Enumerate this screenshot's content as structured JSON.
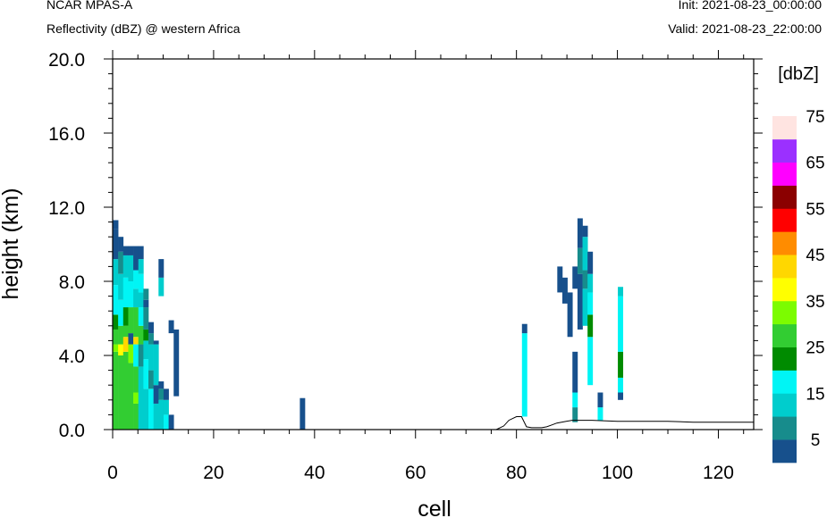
{
  "header": {
    "model": "NCAR MPAS-A",
    "field": "Reflectivity (dBZ) @ western Africa",
    "init": "Init: 2021-08-23_00:00:00",
    "valid": "Valid: 2021-08-23_22:00:00"
  },
  "chart_data": {
    "type": "heatmap",
    "xlabel": "cell",
    "ylabel": "height (km)",
    "xlim": [
      0,
      127
    ],
    "ylim": [
      0,
      20
    ],
    "x_ticks": [
      0,
      20,
      40,
      60,
      80,
      100,
      120
    ],
    "y_ticks": [
      "0.0",
      "4.0",
      "8.0",
      "12.0",
      "16.0",
      "20.0"
    ],
    "colorbar": {
      "label": "[dbZ]",
      "bins": [
        {
          "from": 0,
          "to": 5,
          "color": "#17508c"
        },
        {
          "from": 5,
          "to": 10,
          "color": "#178c8c"
        },
        {
          "from": 10,
          "to": 15,
          "color": "#00cdcd"
        },
        {
          "from": 15,
          "to": 20,
          "color": "#00f5f5"
        },
        {
          "from": 20,
          "to": 25,
          "color": "#008b00"
        },
        {
          "from": 25,
          "to": 30,
          "color": "#32cd32"
        },
        {
          "from": 30,
          "to": 35,
          "color": "#7cfc00"
        },
        {
          "from": 35,
          "to": 40,
          "color": "#ffff00"
        },
        {
          "from": 40,
          "to": 45,
          "color": "#ffd700"
        },
        {
          "from": 45,
          "to": 50,
          "color": "#ff8c00"
        },
        {
          "from": 50,
          "to": 55,
          "color": "#ff0000"
        },
        {
          "from": 55,
          "to": 60,
          "color": "#8b0000"
        },
        {
          "from": 60,
          "to": 65,
          "color": "#ff00ff"
        },
        {
          "from": 65,
          "to": 70,
          "color": "#9b30ff"
        },
        {
          "from": 70,
          "to": 75,
          "color": "#ffe4e1"
        }
      ],
      "tick_labels": [
        {
          "value": 5,
          "label": "5"
        },
        {
          "value": 15,
          "label": "15"
        },
        {
          "value": 25,
          "label": "25"
        },
        {
          "value": 35,
          "label": "35"
        },
        {
          "value": 45,
          "label": "45"
        },
        {
          "value": 55,
          "label": "55"
        },
        {
          "value": 65,
          "label": "65"
        },
        {
          "value": 75,
          "label": "75"
        }
      ]
    },
    "cells": [
      {
        "x": 0,
        "segments": [
          [
            0,
            4.2,
            27
          ],
          [
            4.2,
            4.6,
            30
          ],
          [
            4.6,
            5.4,
            27
          ],
          [
            5.4,
            6.2,
            22
          ],
          [
            6.2,
            7.8,
            17
          ],
          [
            7.8,
            9.2,
            12
          ],
          [
            9.2,
            10.8,
            2
          ],
          [
            10.8,
            11.3,
            2
          ]
        ]
      },
      {
        "x": 1,
        "segments": [
          [
            0,
            4.0,
            27
          ],
          [
            4.0,
            4.6,
            37
          ],
          [
            4.6,
            5.6,
            27
          ],
          [
            5.6,
            7.0,
            17
          ],
          [
            7.0,
            8.4,
            12
          ],
          [
            8.4,
            9.6,
            7
          ],
          [
            9.6,
            10.4,
            2
          ]
        ]
      },
      {
        "x": 2,
        "segments": [
          [
            0,
            4.2,
            27
          ],
          [
            4.2,
            5.0,
            42
          ],
          [
            5.0,
            5.6,
            27
          ],
          [
            5.6,
            6.6,
            22
          ],
          [
            6.6,
            8.2,
            17
          ],
          [
            8.2,
            9.4,
            12
          ],
          [
            9.4,
            9.9,
            2
          ]
        ]
      },
      {
        "x": 3,
        "segments": [
          [
            0,
            3.6,
            27
          ],
          [
            3.6,
            4.6,
            32
          ],
          [
            4.6,
            5.2,
            2
          ],
          [
            5.2,
            6.6,
            27
          ],
          [
            6.6,
            8.0,
            17
          ],
          [
            8.0,
            9.4,
            12
          ],
          [
            9.4,
            9.9,
            2
          ]
        ]
      },
      {
        "x": 4,
        "segments": [
          [
            0,
            1.4,
            27
          ],
          [
            1.4,
            2.0,
            32
          ],
          [
            2.0,
            3.4,
            27
          ],
          [
            3.4,
            4.6,
            17
          ],
          [
            4.6,
            5.0,
            42
          ],
          [
            5.0,
            6.6,
            27
          ],
          [
            6.6,
            7.6,
            12
          ],
          [
            7.6,
            8.6,
            17
          ],
          [
            8.6,
            9.9,
            2
          ]
        ]
      },
      {
        "x": 5,
        "segments": [
          [
            0,
            3.4,
            12
          ],
          [
            3.4,
            4.6,
            7
          ],
          [
            4.6,
            5.6,
            27
          ],
          [
            5.6,
            6.6,
            17
          ],
          [
            6.6,
            7.4,
            12
          ],
          [
            7.4,
            8.4,
            17
          ],
          [
            8.4,
            9.2,
            12
          ],
          [
            9.2,
            9.9,
            2
          ]
        ]
      },
      {
        "x": 6,
        "segments": [
          [
            0,
            2.2,
            12
          ],
          [
            2.2,
            3.8,
            17
          ],
          [
            3.8,
            4.8,
            12
          ],
          [
            4.8,
            5.4,
            22
          ],
          [
            5.4,
            6.6,
            7
          ],
          [
            6.6,
            7.0,
            2
          ],
          [
            7.0,
            7.6,
            7
          ]
        ]
      },
      {
        "x": 7,
        "segments": [
          [
            0,
            2.2,
            17
          ],
          [
            2.2,
            3.2,
            7
          ],
          [
            3.2,
            4.6,
            12
          ],
          [
            4.6,
            5.2,
            7
          ],
          [
            5.2,
            5.8,
            2
          ]
        ]
      },
      {
        "x": 8,
        "segments": [
          [
            0,
            1.4,
            12
          ],
          [
            1.4,
            2.4,
            2
          ],
          [
            2.4,
            4.6,
            12
          ],
          [
            4.6,
            4.8,
            2
          ]
        ]
      },
      {
        "x": 9,
        "segments": [
          [
            0,
            1.6,
            12
          ],
          [
            1.6,
            2.2,
            7
          ],
          [
            2.2,
            2.6,
            2
          ],
          [
            7.2,
            8.2,
            12
          ],
          [
            8.2,
            9.2,
            2
          ]
        ]
      },
      {
        "x": 10,
        "segments": [
          [
            0,
            0.8,
            17
          ],
          [
            0.8,
            1.6,
            12
          ],
          [
            1.6,
            2.2,
            2
          ]
        ]
      },
      {
        "x": 11,
        "segments": [
          [
            0,
            0.8,
            2
          ],
          [
            5.2,
            5.9,
            2
          ]
        ]
      },
      {
        "x": 12,
        "segments": [
          [
            1.8,
            5.4,
            2
          ]
        ]
      },
      {
        "x": 37,
        "segments": [
          [
            0,
            1.7,
            2
          ]
        ]
      },
      {
        "x": 81,
        "segments": [
          [
            0.7,
            5.2,
            17
          ],
          [
            5.2,
            5.7,
            2
          ]
        ]
      },
      {
        "x": 88,
        "segments": [
          [
            7.4,
            8.8,
            2
          ]
        ]
      },
      {
        "x": 89,
        "segments": [
          [
            6.8,
            8.2,
            2
          ]
        ]
      },
      {
        "x": 90,
        "segments": [
          [
            5.0,
            7.4,
            2
          ]
        ]
      },
      {
        "x": 91,
        "segments": [
          [
            0.4,
            1.2,
            7
          ],
          [
            1.2,
            2.0,
            17
          ],
          [
            2.0,
            4.2,
            2
          ],
          [
            7.6,
            8.8,
            2
          ]
        ]
      },
      {
        "x": 92,
        "segments": [
          [
            5.4,
            8.4,
            2
          ],
          [
            8.4,
            9.8,
            7
          ],
          [
            9.8,
            11.4,
            2
          ]
        ]
      },
      {
        "x": 93,
        "segments": [
          [
            5.6,
            7.6,
            12
          ],
          [
            7.6,
            8.6,
            7
          ],
          [
            8.6,
            10.4,
            12
          ],
          [
            10.4,
            11.0,
            2
          ]
        ]
      },
      {
        "x": 94,
        "segments": [
          [
            2.4,
            5.0,
            17
          ],
          [
            5.0,
            6.2,
            22
          ],
          [
            6.2,
            7.4,
            17
          ],
          [
            7.4,
            8.4,
            12
          ],
          [
            8.4,
            9.6,
            2
          ]
        ]
      },
      {
        "x": 96,
        "segments": [
          [
            0.5,
            1.2,
            17
          ],
          [
            1.2,
            2.0,
            2
          ]
        ]
      },
      {
        "x": 100,
        "segments": [
          [
            1.6,
            2.0,
            2
          ],
          [
            2.0,
            2.8,
            17
          ],
          [
            2.8,
            4.2,
            22
          ],
          [
            4.2,
            7.2,
            17
          ],
          [
            7.2,
            7.7,
            12
          ]
        ]
      }
    ],
    "terrain": [
      [
        0,
        0
      ],
      [
        76,
        0
      ],
      [
        77.5,
        0.2
      ],
      [
        78.5,
        0.5
      ],
      [
        80,
        0.7
      ],
      [
        81,
        0.7
      ],
      [
        82,
        0.15
      ],
      [
        83,
        0.1
      ],
      [
        85,
        0.1
      ],
      [
        86,
        0.15
      ],
      [
        87,
        0.25
      ],
      [
        88,
        0.35
      ],
      [
        91,
        0.5
      ],
      [
        95,
        0.5
      ],
      [
        100,
        0.45
      ],
      [
        110,
        0.45
      ],
      [
        115,
        0.4
      ],
      [
        127,
        0.4
      ]
    ]
  }
}
